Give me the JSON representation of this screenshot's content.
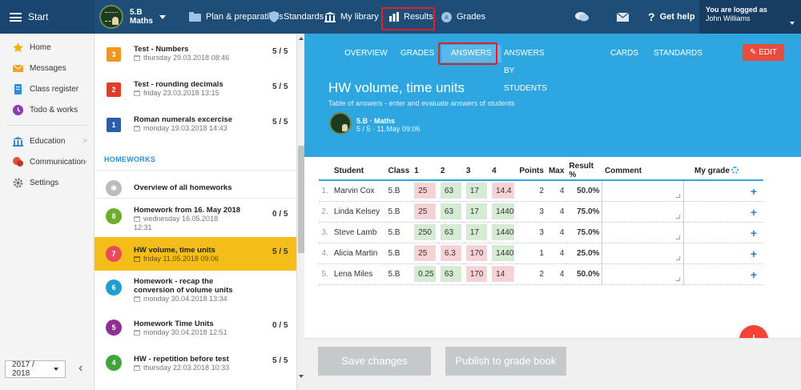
{
  "topbar": {
    "start_label": "Start",
    "class_name": "5.B",
    "class_subject": "Maths",
    "nav": [
      {
        "label": "Plan & preparations",
        "icon": "folder-icon"
      },
      {
        "label": "Standards",
        "icon": "shield-icon"
      },
      {
        "label": "My library",
        "icon": "library-icon"
      },
      {
        "label": "Results",
        "icon": "bar-chart-icon"
      },
      {
        "label": "Grades",
        "icon": "grade-icon"
      }
    ],
    "get_help": "Get help",
    "logged_label": "You are logged as",
    "user_name": "John Williams"
  },
  "sidebar": {
    "items": [
      {
        "label": "Home",
        "icon": "star-icon"
      },
      {
        "label": "Messages",
        "icon": "envelope-icon"
      },
      {
        "label": "Class register",
        "icon": "register-icon"
      },
      {
        "label": "Todo & works",
        "icon": "todo-icon"
      },
      {
        "label": "Education",
        "icon": "education-icon"
      },
      {
        "label": "Communication",
        "icon": "communication-icon"
      },
      {
        "label": "Settings",
        "icon": "gear-icon"
      }
    ],
    "year": "2017 / 2018"
  },
  "tasks": {
    "tests": [
      {
        "num": "3",
        "title": "Test - Numbers",
        "date": "thursday 29.03.2018 08:46",
        "score": "5 / 5",
        "color": "#f0961e"
      },
      {
        "num": "2",
        "title": "Test - rounding decimals",
        "date": "friday 23.03.2018 13:15",
        "score": "5 / 5",
        "color": "#e13c28"
      },
      {
        "num": "1",
        "title": "Roman numerals excercise",
        "date": "monday 19.03.2018 14:43",
        "score": "5 / 5",
        "color": "#2b5ea8"
      }
    ],
    "homeworks_header": "HOMEWORKS",
    "overview_label": "Overview of all homeworks",
    "homeworks": [
      {
        "num": "8",
        "title": "Homework from 16. May 2018",
        "date": "wednesday 16.05.2018",
        "date2": "12:31",
        "score": "0 / 5",
        "color": "#6fac2d"
      },
      {
        "num": "7",
        "title": "HW volume, time units",
        "date": "friday 11.05.2018 09:06",
        "score": "5 / 5",
        "color": "#e84c5a"
      },
      {
        "num": "6",
        "title": "Homework - recap the",
        "title2": "conversion of volume units",
        "date": "monday 30.04.2018 13:34",
        "score": "",
        "color": "#1e9fd0"
      },
      {
        "num": "5",
        "title": "Homework Time Units",
        "date": "monday 30.04.2018 12:51",
        "score": "0 / 5",
        "color": "#8f2f96"
      },
      {
        "num": "4",
        "title": "HW - repetition before test",
        "date": "thursday 22.03.2018 10:33",
        "score": "5 / 5",
        "color": "#3fa43a"
      }
    ]
  },
  "main": {
    "tabs": [
      "OVERVIEW",
      "GRADES",
      "ANSWERS",
      "ANSWERS BY STUDENTS",
      "CARDS",
      "STANDARDS"
    ],
    "edit_label": "EDIT",
    "title": "HW volume, time units",
    "subtitle": "Table of answers - enter and evaluate answers of students",
    "class_label": "5.B · Maths",
    "meta_label": "5 / 5 · 11.May 09:06"
  },
  "table": {
    "headers": {
      "student": "Student",
      "class": "Class",
      "q1": "1",
      "q2": "2",
      "q3": "3",
      "q4": "4",
      "points": "Points",
      "max": "Max",
      "result": "Result %",
      "comment": "Comment",
      "grade": "My grade"
    },
    "rows": [
      {
        "num": "1.",
        "student": "Marvin Cox",
        "class": "5.B",
        "a1": "25",
        "a2": "63",
        "a3": "17",
        "a4": "14.4",
        "points": "2",
        "max": "4",
        "result": "50.0%"
      },
      {
        "num": "2.",
        "student": "Linda Kelsey",
        "class": "5.B",
        "a1": "25",
        "a2": "63",
        "a3": "17",
        "a4": "1440",
        "points": "3",
        "max": "4",
        "result": "75.0%"
      },
      {
        "num": "3.",
        "student": "Steve Lamb",
        "class": "5.B",
        "a1": "250",
        "a2": "63",
        "a3": "17",
        "a4": "1440",
        "points": "3",
        "max": "4",
        "result": "75.0%"
      },
      {
        "num": "4.",
        "student": "Alicia Martin",
        "class": "5.B",
        "a1": "25",
        "a2": "6.3",
        "a3": "170",
        "a4": "1440",
        "points": "1",
        "max": "4",
        "result": "25.0%"
      },
      {
        "num": "5.",
        "student": "Lena Miles",
        "class": "5.B",
        "a1": "0.25",
        "a2": "63",
        "a3": "170",
        "a4": "14",
        "points": "2",
        "max": "4",
        "result": "50.0%"
      }
    ]
  },
  "bottom": {
    "save_label": "Save changes",
    "publish_label": "Publish to grade book"
  },
  "colors": {
    "topbar": "#1e4d78",
    "accent": "#2ea7e0",
    "selected": "#f5bd19",
    "correct": "#d4ecd1",
    "wrong": "#f7d1d4",
    "danger": "#e74c3c"
  }
}
